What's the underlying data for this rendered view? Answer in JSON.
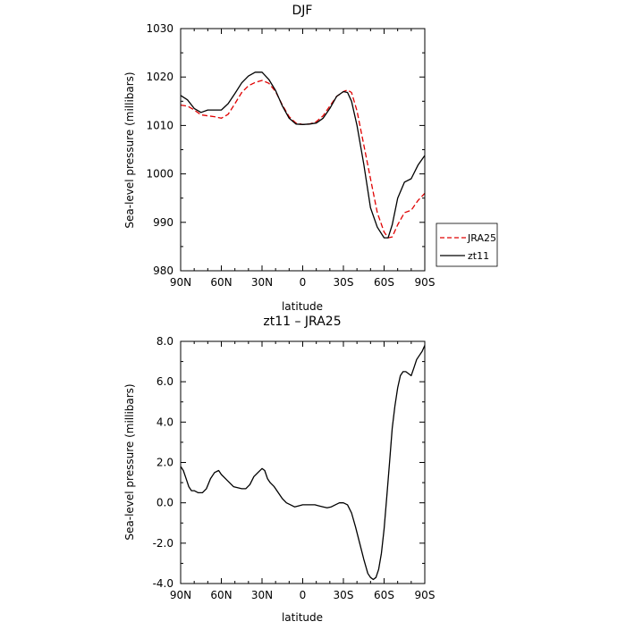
{
  "chart_data": [
    {
      "type": "line",
      "title": "DJF",
      "xlabel": "latitude",
      "ylabel": "Sea-level pressure (millibars)",
      "x_ticks": [
        {
          "value": 90,
          "label": "90N"
        },
        {
          "value": 60,
          "label": "60N"
        },
        {
          "value": 30,
          "label": "30N"
        },
        {
          "value": 0,
          "label": "0"
        },
        {
          "value": -30,
          "label": "30S"
        },
        {
          "value": -60,
          "label": "60S"
        },
        {
          "value": -90,
          "label": "90S"
        }
      ],
      "xlim": [
        90,
        -90
      ],
      "ylim": [
        980,
        1030
      ],
      "y_ticks": [
        {
          "value": 980,
          "label": "980"
        },
        {
          "value": 990,
          "label": "990"
        },
        {
          "value": 1000,
          "label": "1000"
        },
        {
          "value": 1010,
          "label": "1010"
        },
        {
          "value": 1020,
          "label": "1020"
        },
        {
          "value": 1030,
          "label": "1030"
        }
      ],
      "grid": false,
      "legend": "right",
      "series": [
        {
          "name": "JRA25",
          "color": "#e00000",
          "dash": "dashed",
          "x": [
            90,
            85,
            80,
            75,
            70,
            65,
            60,
            55,
            50,
            45,
            40,
            35,
            30,
            25,
            20,
            15,
            10,
            5,
            0,
            -5,
            -10,
            -15,
            -20,
            -25,
            -30,
            -33,
            -36,
            -40,
            -45,
            -50,
            -55,
            -60,
            -63,
            -66,
            -70,
            -75,
            -80,
            -85,
            -90
          ],
          "y": [
            1014.2,
            1014.0,
            1013.2,
            1012.2,
            1012.0,
            1011.8,
            1011.5,
            1012.3,
            1014.5,
            1016.8,
            1018.2,
            1018.9,
            1019.3,
            1018.7,
            1017.0,
            1014.2,
            1011.8,
            1010.5,
            1010.2,
            1010.3,
            1010.8,
            1012.0,
            1014.0,
            1016.0,
            1017.0,
            1017.3,
            1016.8,
            1013.0,
            1006.0,
            999.0,
            992.0,
            988.0,
            986.8,
            987.0,
            989.5,
            992.0,
            992.5,
            994.5,
            996.0
          ]
        },
        {
          "name": "zt11",
          "color": "#000000",
          "dash": "solid",
          "x": [
            90,
            85,
            80,
            75,
            70,
            65,
            60,
            55,
            50,
            45,
            40,
            35,
            30,
            25,
            20,
            15,
            10,
            5,
            0,
            -5,
            -10,
            -15,
            -20,
            -25,
            -30,
            -33,
            -36,
            -40,
            -45,
            -50,
            -55,
            -60,
            -63,
            -66,
            -70,
            -75,
            -80,
            -85,
            -90
          ],
          "y": [
            1016.2,
            1015.3,
            1013.5,
            1012.7,
            1013.2,
            1013.2,
            1013.2,
            1014.5,
            1016.6,
            1018.8,
            1020.2,
            1021.0,
            1021.0,
            1019.5,
            1017.2,
            1014.0,
            1011.5,
            1010.3,
            1010.2,
            1010.3,
            1010.5,
            1011.5,
            1013.5,
            1016.0,
            1017.0,
            1016.8,
            1015.0,
            1010.0,
            1002.0,
            993.0,
            989.0,
            986.8,
            986.8,
            989.5,
            995.0,
            998.3,
            999.0,
            1001.8,
            1003.8
          ]
        }
      ]
    },
    {
      "type": "line",
      "title": "zt11 – JRA25",
      "xlabel": "latitude",
      "ylabel": "Sea-level pressure (millibars)",
      "x_ticks": [
        {
          "value": 90,
          "label": "90N"
        },
        {
          "value": 60,
          "label": "60N"
        },
        {
          "value": 30,
          "label": "30N"
        },
        {
          "value": 0,
          "label": "0"
        },
        {
          "value": -30,
          "label": "30S"
        },
        {
          "value": -60,
          "label": "60S"
        },
        {
          "value": -90,
          "label": "90S"
        }
      ],
      "xlim": [
        90,
        -90
      ],
      "ylim": [
        -4,
        8
      ],
      "y_ticks": [
        {
          "value": -4,
          "label": "-4.0"
        },
        {
          "value": -2,
          "label": "-2.0"
        },
        {
          "value": 0,
          "label": "0.0"
        },
        {
          "value": 2,
          "label": "2.0"
        },
        {
          "value": 4,
          "label": "4.0"
        },
        {
          "value": 6,
          "label": "6.0"
        },
        {
          "value": 8,
          "label": "8.0"
        }
      ],
      "grid": false,
      "series": [
        {
          "color": "#000000",
          "dash": "solid",
          "x": [
            90,
            88,
            86,
            84,
            82,
            80,
            77,
            74,
            71,
            68,
            65,
            62,
            60,
            57,
            54,
            51,
            48,
            45,
            42,
            39,
            36,
            33,
            30,
            28,
            26,
            24,
            21,
            18,
            15,
            12,
            9,
            6,
            3,
            0,
            -3,
            -6,
            -9,
            -12,
            -15,
            -18,
            -21,
            -24,
            -27,
            -30,
            -33,
            -36,
            -39,
            -42,
            -45,
            -48,
            -50,
            -52,
            -54,
            -56,
            -58,
            -60,
            -62,
            -64,
            -66,
            -68,
            -70,
            -72,
            -74,
            -76,
            -78,
            -80,
            -82,
            -84,
            -86,
            -88,
            -90
          ],
          "y": [
            1.8,
            1.6,
            1.2,
            0.8,
            0.6,
            0.6,
            0.5,
            0.5,
            0.7,
            1.2,
            1.5,
            1.6,
            1.4,
            1.2,
            1.0,
            0.8,
            0.75,
            0.7,
            0.7,
            0.9,
            1.3,
            1.5,
            1.7,
            1.6,
            1.2,
            1.0,
            0.8,
            0.5,
            0.2,
            0.0,
            -0.1,
            -0.2,
            -0.15,
            -0.1,
            -0.1,
            -0.1,
            -0.1,
            -0.15,
            -0.2,
            -0.25,
            -0.2,
            -0.1,
            0.0,
            0.0,
            -0.1,
            -0.5,
            -1.2,
            -2.0,
            -2.8,
            -3.5,
            -3.7,
            -3.8,
            -3.7,
            -3.3,
            -2.5,
            -1.3,
            0.3,
            2.0,
            3.7,
            4.8,
            5.7,
            6.3,
            6.5,
            6.5,
            6.4,
            6.3,
            6.7,
            7.1,
            7.3,
            7.5,
            7.8
          ]
        }
      ]
    }
  ]
}
